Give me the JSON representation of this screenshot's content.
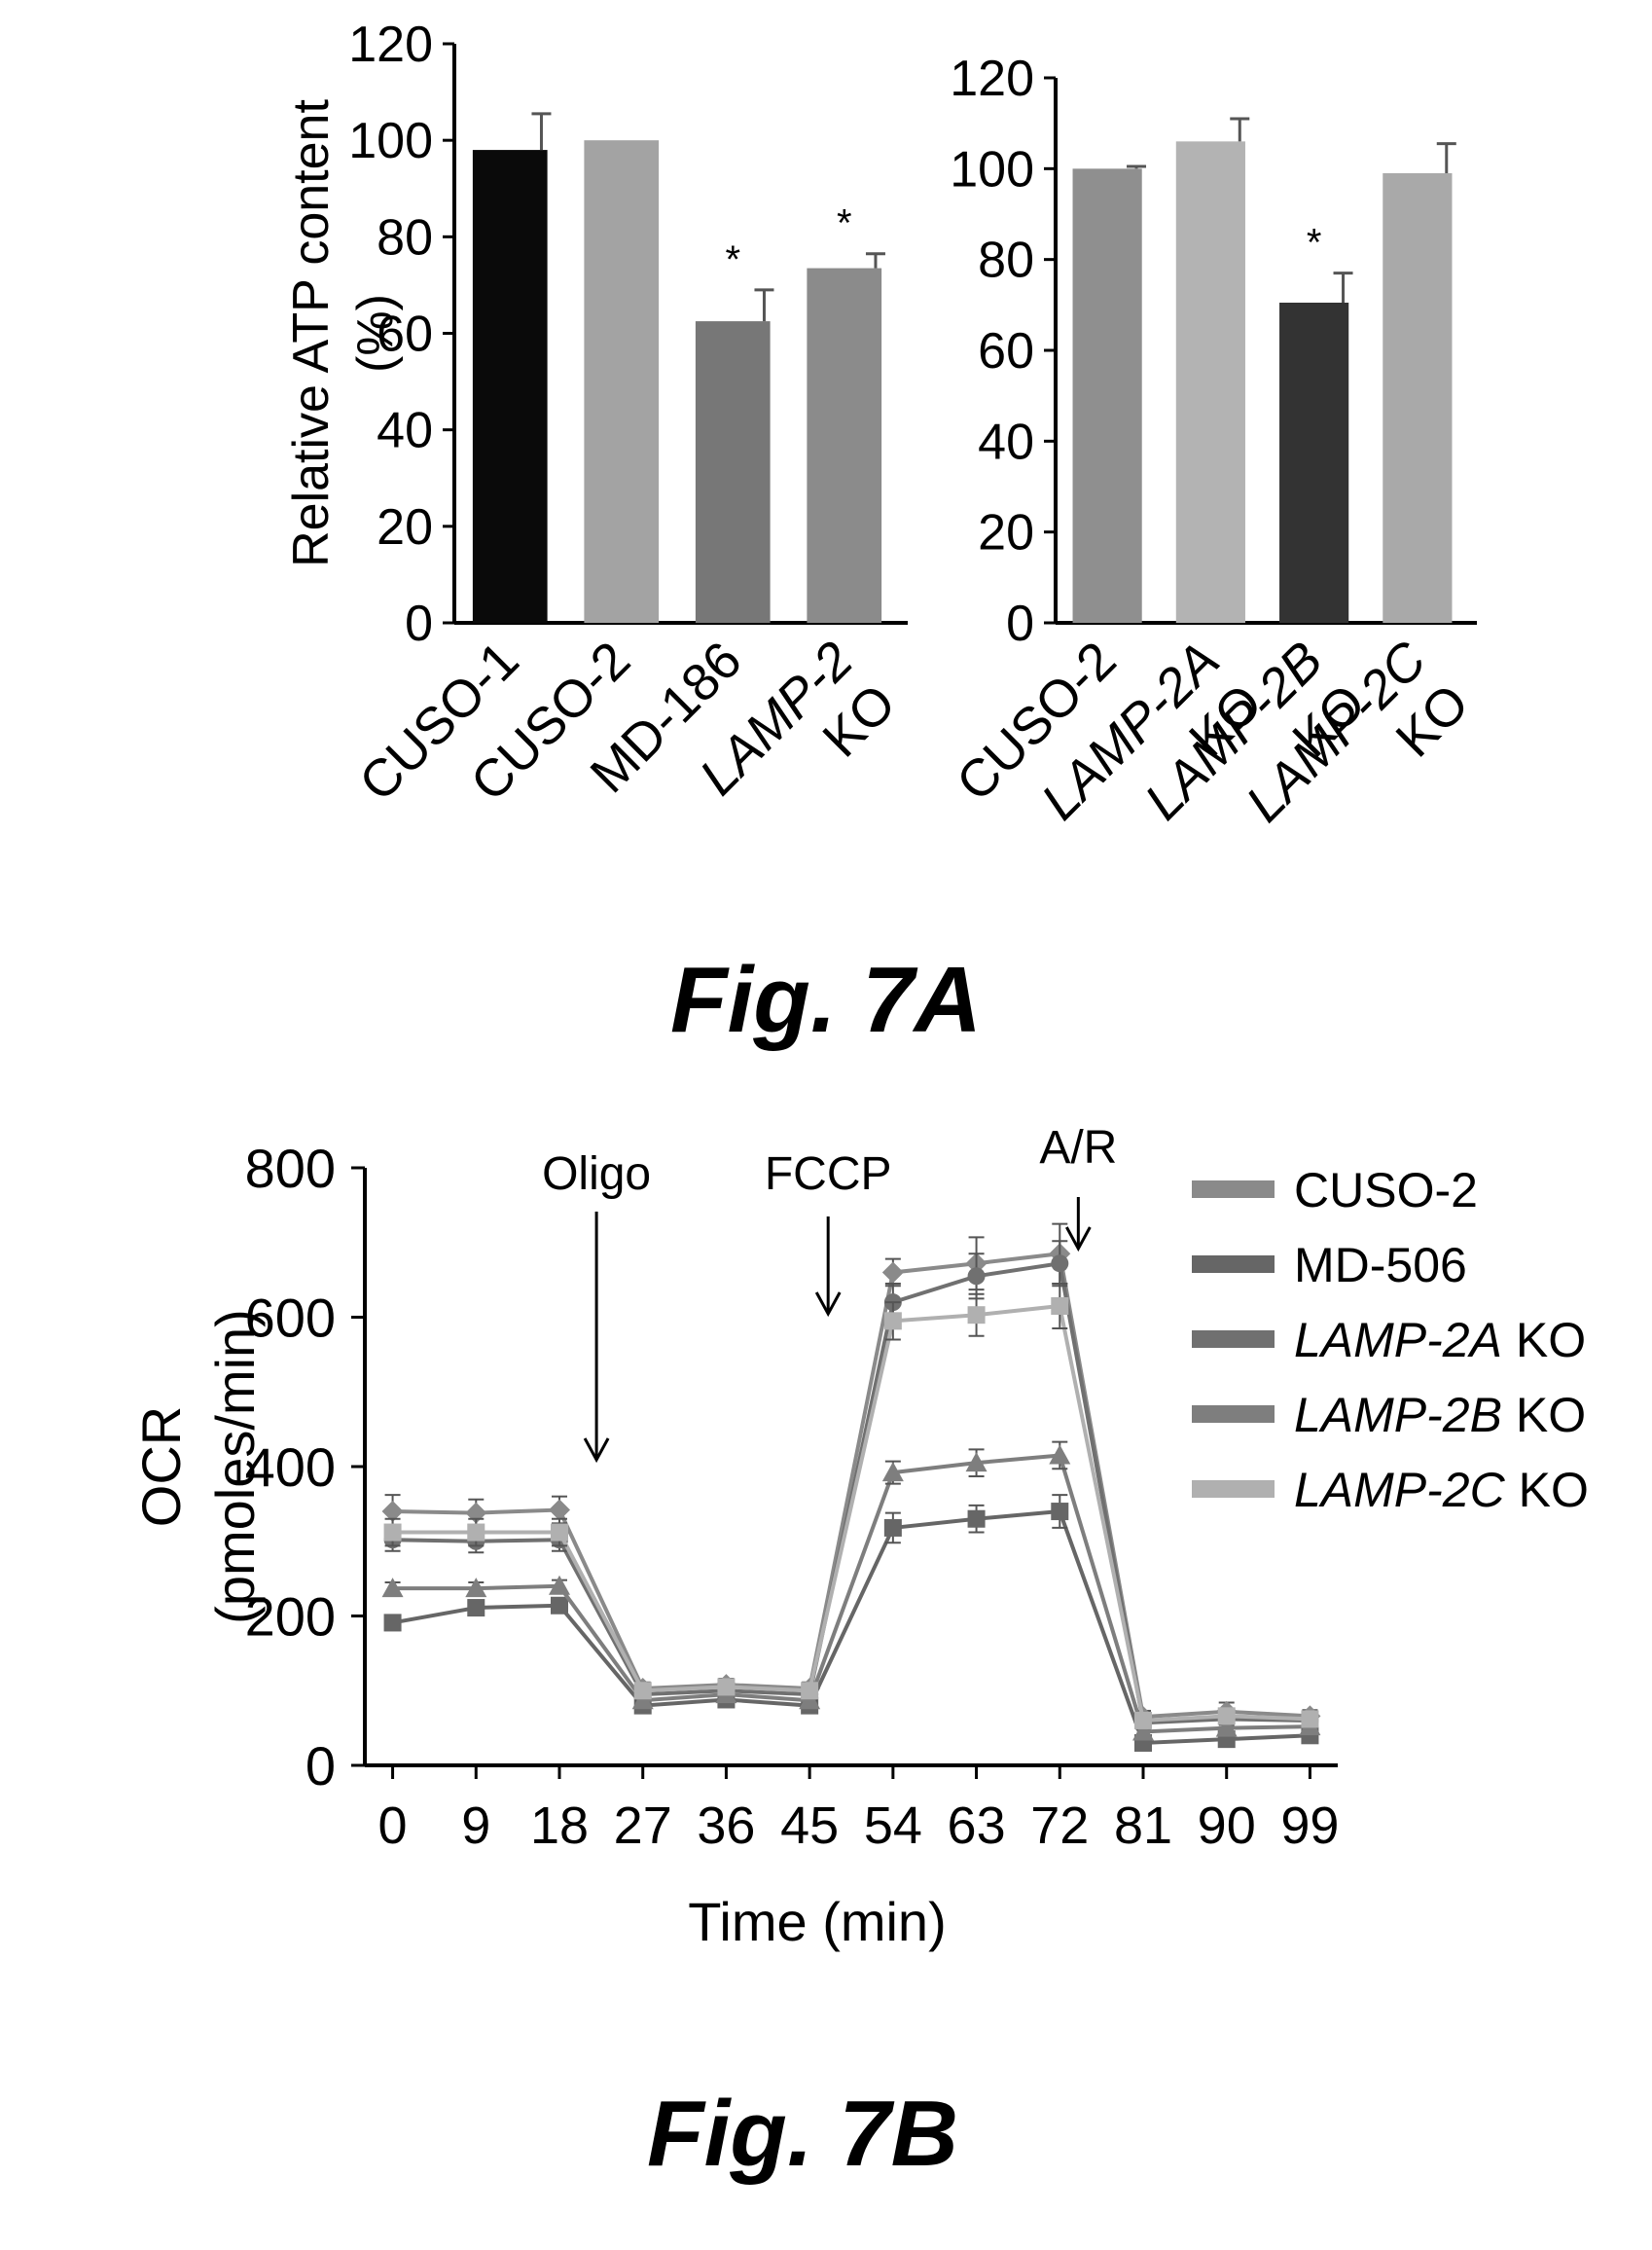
{
  "figure_labels": {
    "panel_a": "Fig. 7A",
    "panel_b": "Fig. 7B"
  },
  "chart_data": [
    {
      "type": "bar",
      "ylabel_line1": "Relative ATP content",
      "ylabel_line2": "(%)",
      "ylim": [
        0,
        120
      ],
      "yticks": [
        0,
        20,
        40,
        60,
        80,
        100,
        120
      ],
      "categories": [
        {
          "lines": [
            "CUSO-1"
          ],
          "italic": [
            false
          ]
        },
        {
          "lines": [
            "CUSO-2"
          ],
          "italic": [
            false
          ]
        },
        {
          "lines": [
            "MD-186"
          ],
          "italic": [
            false
          ]
        },
        {
          "lines": [
            "LAMP-2",
            "KO"
          ],
          "italic": [
            true,
            false
          ]
        }
      ],
      "values": [
        98,
        100,
        62.5,
        73.5
      ],
      "errors": [
        7.5,
        0,
        6.5,
        3
      ],
      "significance": [
        "",
        "",
        "*",
        "*"
      ],
      "colors": [
        "#0a0a0a",
        "#a3a3a3",
        "#777777",
        "#8b8b8b"
      ]
    },
    {
      "type": "bar",
      "ylim": [
        0,
        120
      ],
      "yticks": [
        0,
        20,
        40,
        60,
        80,
        100,
        120
      ],
      "categories": [
        {
          "lines": [
            "CUSO-2"
          ],
          "italic": [
            false
          ]
        },
        {
          "lines": [
            "LAMP-2A",
            "KO"
          ],
          "italic": [
            true,
            false
          ]
        },
        {
          "lines": [
            "LAMP-2B",
            "KO"
          ],
          "italic": [
            true,
            false
          ]
        },
        {
          "lines": [
            "LAMP-2C",
            "KO"
          ],
          "italic": [
            true,
            false
          ]
        }
      ],
      "values": [
        100,
        106,
        70.5,
        99
      ],
      "errors": [
        0.5,
        5,
        6.5,
        6.5
      ],
      "significance": [
        "",
        "",
        "*",
        ""
      ],
      "colors": [
        "#8f8f8f",
        "#b3b3b3",
        "#333333",
        "#a9a9a9"
      ]
    },
    {
      "type": "line",
      "xlabel": "Time (min)",
      "ylabel_line1": "OCR",
      "ylabel_line2": "(pmoles/min)",
      "x": [
        0,
        9,
        18,
        27,
        36,
        45,
        54,
        63,
        72,
        81,
        90,
        99
      ],
      "xlim": [
        -3,
        102
      ],
      "ylim": [
        0,
        800
      ],
      "yticks": [
        0,
        200,
        400,
        600,
        800
      ],
      "annotations": [
        {
          "text": "Oligo",
          "x": 22
        },
        {
          "text": "FCCP",
          "x": 47
        },
        {
          "text": "A/R",
          "x": 74
        }
      ],
      "series": [
        {
          "name": "CUSO-2",
          "prefix": "CUSO-2",
          "suffix": "",
          "italic": false,
          "color": "#8a8a8a",
          "marker": "diamond",
          "values": [
            340,
            338,
            342,
            103,
            108,
            103,
            660,
            672,
            685,
            65,
            72,
            66
          ],
          "errors": [
            22,
            18,
            18,
            8,
            8,
            8,
            18,
            35,
            40,
            8,
            12,
            8
          ]
        },
        {
          "name": "MD-506",
          "prefix": "MD-506",
          "suffix": "",
          "italic": false,
          "color": "#666666",
          "marker": "square",
          "values": [
            191,
            211,
            214,
            80,
            88,
            80,
            318,
            330,
            340,
            30,
            35,
            40
          ],
          "errors": [
            10,
            10,
            10,
            6,
            6,
            6,
            20,
            18,
            22,
            6,
            6,
            6
          ]
        },
        {
          "name": "LAMP-2A KO",
          "prefix": "LAMP-2A",
          "suffix": " KO",
          "italic": true,
          "color": "#707070",
          "marker": "circle",
          "values": [
            302,
            300,
            302,
            95,
            100,
            95,
            620,
            655,
            672,
            57,
            62,
            60
          ],
          "errors": [
            15,
            15,
            15,
            8,
            8,
            8,
            25,
            30,
            30,
            8,
            8,
            8
          ]
        },
        {
          "name": "LAMP-2B KO",
          "prefix": "LAMP-2B",
          "suffix": " KO",
          "italic": true,
          "color": "#7e7e7e",
          "marker": "triangle",
          "values": [
            237,
            237,
            240,
            87,
            95,
            87,
            392,
            405,
            415,
            45,
            50,
            52
          ],
          "errors": [
            8,
            8,
            8,
            6,
            6,
            6,
            15,
            18,
            18,
            6,
            6,
            6
          ]
        },
        {
          "name": "LAMP-2C KO",
          "prefix": "LAMP-2C",
          "suffix": " KO",
          "italic": true,
          "color": "#b0b0b0",
          "marker": "square",
          "values": [
            312,
            312,
            312,
            100,
            105,
            100,
            595,
            603,
            615,
            60,
            66,
            62
          ],
          "errors": [
            18,
            18,
            18,
            8,
            8,
            8,
            25,
            28,
            30,
            8,
            8,
            8
          ]
        }
      ]
    }
  ]
}
